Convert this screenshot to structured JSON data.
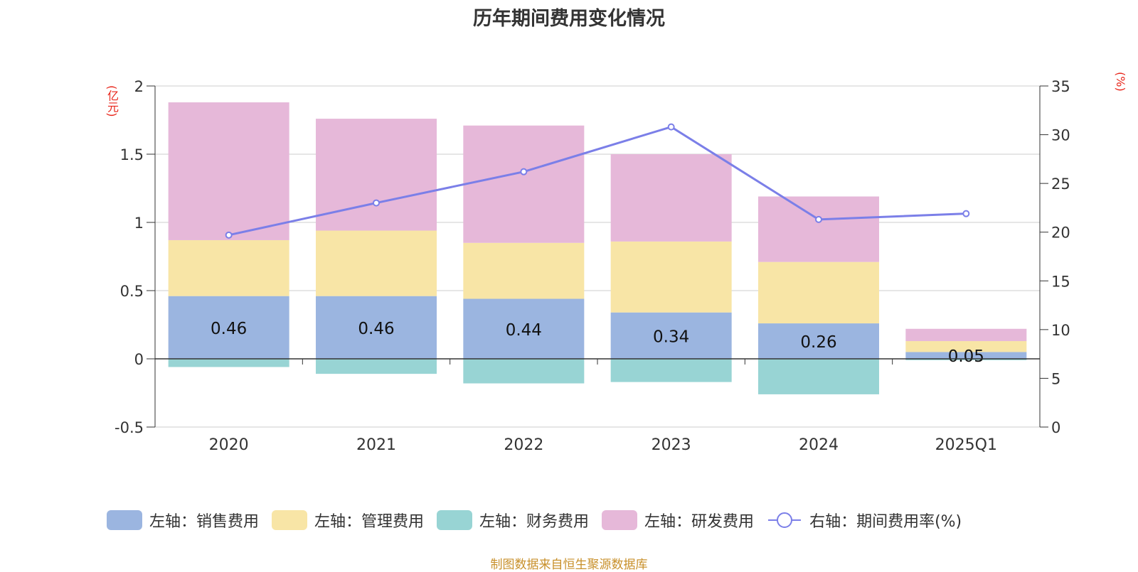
{
  "title": "历年期间费用变化情况",
  "left_unit": "(亿元)",
  "right_unit": "(%)",
  "source": "制图数据来自恒生聚源数据库",
  "colors": {
    "sales": "#9bb5e0",
    "admin": "#f8e5a6",
    "finance": "#98d4d4",
    "rd": "#e6b8d9",
    "rate_line": "#7b7fe8"
  },
  "legend": [
    {
      "key": "sales",
      "label": "左轴：销售费用"
    },
    {
      "key": "admin",
      "label": "左轴：管理费用"
    },
    {
      "key": "finance",
      "label": "左轴：财务费用"
    },
    {
      "key": "rd",
      "label": "左轴：研发费用"
    },
    {
      "key": "rate",
      "label": "右轴：期间费用率(%)"
    }
  ],
  "chart_data": {
    "type": "bar",
    "stacked": true,
    "title": "历年期间费用变化情况",
    "categories": [
      "2020",
      "2021",
      "2022",
      "2023",
      "2024",
      "2025Q1"
    ],
    "series": [
      {
        "name": "左轴：销售费用",
        "key": "sales",
        "axis": "left",
        "values": [
          0.46,
          0.46,
          0.44,
          0.34,
          0.26,
          0.05
        ],
        "labels": [
          "0.46",
          "0.46",
          "0.44",
          "0.34",
          "0.26",
          "0.05"
        ]
      },
      {
        "name": "左轴：管理费用",
        "key": "admin",
        "axis": "left",
        "values": [
          0.41,
          0.48,
          0.41,
          0.52,
          0.45,
          0.08
        ]
      },
      {
        "name": "左轴：财务费用",
        "key": "finance",
        "axis": "left",
        "values": [
          -0.06,
          -0.11,
          -0.18,
          -0.17,
          -0.26,
          -0.01
        ]
      },
      {
        "name": "左轴：研发费用",
        "key": "rd",
        "axis": "left",
        "values": [
          1.01,
          0.82,
          0.86,
          0.64,
          0.48,
          0.09
        ]
      },
      {
        "name": "右轴：期间费用率(%)",
        "key": "rate",
        "axis": "right",
        "type": "line",
        "values": [
          19.7,
          23.0,
          26.2,
          30.8,
          21.3,
          21.9
        ]
      }
    ],
    "left_axis": {
      "label": "(亿元)",
      "min": -0.5,
      "max": 2,
      "ticks": [
        -0.5,
        0,
        0.5,
        1,
        1.5,
        2
      ],
      "tick_labels": [
        "-0.5",
        "0",
        "0.5",
        "1",
        "1.5",
        "2"
      ]
    },
    "right_axis": {
      "label": "(%)",
      "min": 0,
      "max": 35,
      "ticks": [
        0,
        5,
        10,
        15,
        20,
        25,
        30,
        35
      ],
      "tick_labels": [
        "0",
        "5",
        "10",
        "15",
        "20",
        "25",
        "30",
        "35"
      ]
    },
    "grid": true,
    "legend_position": "bottom"
  }
}
